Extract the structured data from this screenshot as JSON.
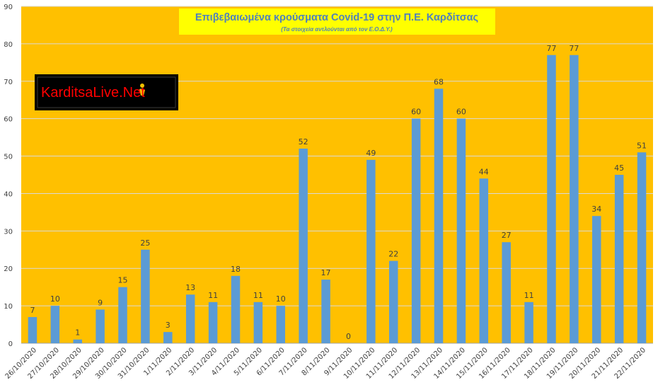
{
  "chart_data": {
    "type": "bar",
    "title": "Επιβεβαιωμένα κρούσματα Covid-19 στην Π.Ε. Καρδίτσας",
    "subtitle": "(Τα στοιχεία αντλούνται από τον Ε.Ο.Δ.Υ.)",
    "xlabel": "",
    "ylabel": "",
    "ylim": [
      0,
      90
    ],
    "yticks": [
      0,
      10,
      20,
      30,
      40,
      50,
      60,
      70,
      80,
      90
    ],
    "grid": true,
    "legend": "none",
    "categories": [
      "26/10/2020",
      "27/10/2020",
      "28/10/2020",
      "29/10/2020",
      "30/10/2020",
      "31/10/2020",
      "1/11/2020",
      "2/11/2020",
      "3/11/2020",
      "4/11/2020",
      "5/11/2020",
      "6/11/2020",
      "7/11/2020",
      "8/11/2020",
      "9/11/2020",
      "10/11/2020",
      "11/11/2020",
      "12/11/2020",
      "13/11/2020",
      "14/11/2020",
      "15/11/2020",
      "16/11/2020",
      "17/11/2020",
      "18/11/2020",
      "19/11/2020",
      "20/11/2020",
      "21/11/2020",
      "22/11/2020"
    ],
    "values": [
      7,
      10,
      1,
      9,
      15,
      25,
      3,
      13,
      11,
      18,
      11,
      10,
      52,
      17,
      0,
      49,
      22,
      60,
      68,
      60,
      44,
      27,
      11,
      77,
      77,
      34,
      45,
      51
    ]
  },
  "logo": {
    "text_part1": "Karditsa",
    "text_part2": "Live",
    "text_part3": ".Net"
  },
  "colors": {
    "plot_background": "#ffc000",
    "bar": "#5b9bd5",
    "title_box": "#ffff00",
    "title_text": "#4f81bd",
    "logo_background": "#000000",
    "logo_text": "#ff0000"
  }
}
